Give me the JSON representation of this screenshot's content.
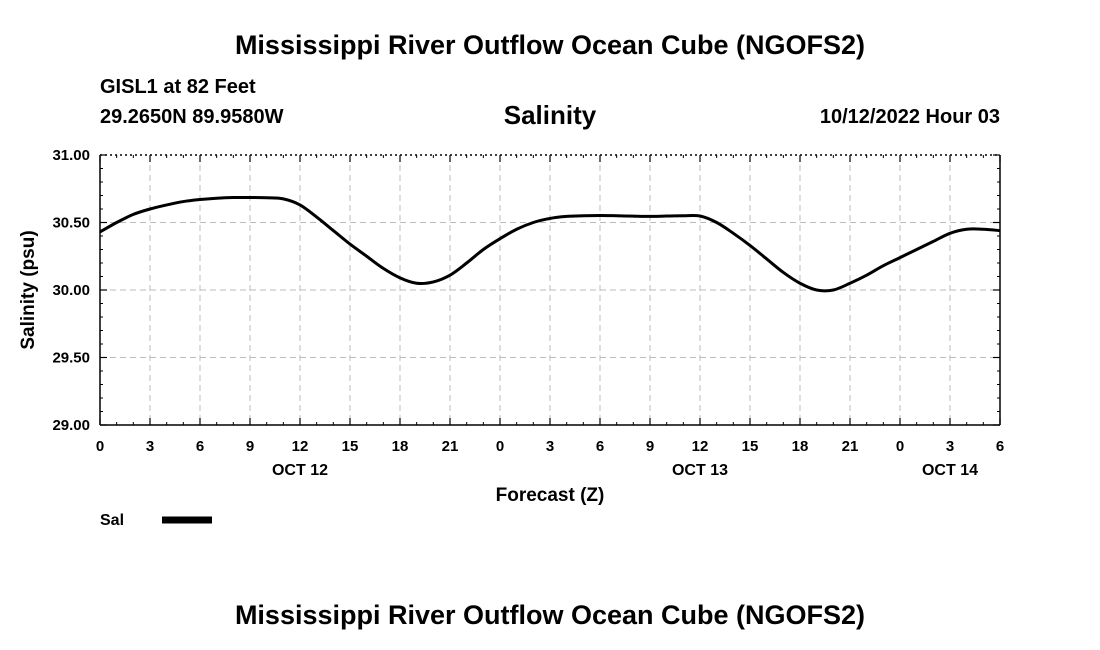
{
  "header": {
    "title": "Mississippi River Outflow Ocean Cube (NGOFS2)",
    "station": "GISL1 at 82 Feet",
    "coords": "29.2650N  89.9580W",
    "variable": "Salinity",
    "datetime": "10/12/2022 Hour 03"
  },
  "footer": {
    "title": "Mississippi River Outflow Ocean Cube (NGOFS2)"
  },
  "chart_data": {
    "type": "line",
    "title": "Salinity",
    "xlabel": "Forecast (Z)",
    "ylabel": "Salinity (psu)",
    "ylim": [
      29.0,
      31.0
    ],
    "yticks": [
      "29.00",
      "29.50",
      "30.00",
      "30.50",
      "31.00"
    ],
    "xlim": [
      0,
      54
    ],
    "xtick_labels": [
      "0",
      "3",
      "6",
      "9",
      "12",
      "15",
      "18",
      "21",
      "0",
      "3",
      "6",
      "9",
      "12",
      "15",
      "18",
      "21",
      "0",
      "3",
      "6"
    ],
    "date_labels": [
      {
        "label": "OCT 12",
        "hour": 12
      },
      {
        "label": "OCT 13",
        "hour": 36
      },
      {
        "label": "OCT 14",
        "hour": 51
      }
    ],
    "grid": true,
    "legend": {
      "label": "Sal",
      "position": "bottom-left"
    },
    "series": [
      {
        "name": "Sal",
        "color": "#000000",
        "x": [
          0,
          1,
          2,
          3,
          4,
          5,
          6,
          7,
          8,
          9,
          10,
          11,
          12,
          13,
          14,
          15,
          16,
          17,
          18,
          19,
          20,
          21,
          22,
          23,
          24,
          25,
          26,
          27,
          28,
          29,
          30,
          31,
          32,
          33,
          34,
          35,
          36,
          37,
          38,
          39,
          40,
          41,
          42,
          43,
          44,
          45,
          46,
          47,
          48,
          49,
          50,
          51,
          52,
          53,
          54
        ],
        "y": [
          30.43,
          30.5,
          30.56,
          30.6,
          30.63,
          30.655,
          30.67,
          30.68,
          30.685,
          30.685,
          30.683,
          30.675,
          30.63,
          30.54,
          30.44,
          30.34,
          30.25,
          30.16,
          30.09,
          30.05,
          30.06,
          30.11,
          30.2,
          30.3,
          30.38,
          30.45,
          30.5,
          30.53,
          30.545,
          30.55,
          30.552,
          30.55,
          30.547,
          30.545,
          30.548,
          30.55,
          30.548,
          30.5,
          30.42,
          30.33,
          30.23,
          30.13,
          30.05,
          30.0,
          30.0,
          30.05,
          30.11,
          30.18,
          30.24,
          30.3,
          30.36,
          30.42,
          30.45,
          30.45,
          30.44
        ]
      }
    ]
  }
}
